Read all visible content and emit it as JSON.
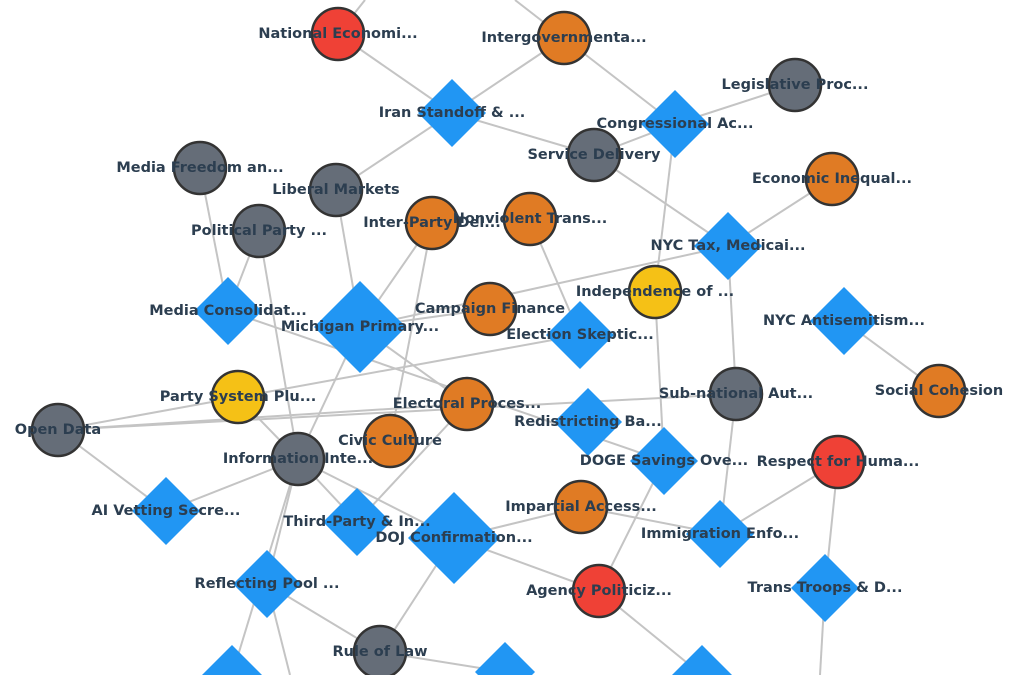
{
  "nodes": [
    {
      "label": "National Economi...",
      "shape": "circle",
      "color": "#ef4136"
    },
    {
      "label": "Intergovernmenta...",
      "shape": "circle",
      "color": "#e07b24"
    },
    {
      "label": "Legislative Proc...",
      "shape": "circle",
      "color": "#656d78"
    },
    {
      "label": "Iran Standoff & ...",
      "shape": "diamond",
      "color": "#2196f3"
    },
    {
      "label": "Congressional Ac...",
      "shape": "diamond",
      "color": "#2196f3"
    },
    {
      "label": "Service Delivery",
      "shape": "circle",
      "color": "#656d78"
    },
    {
      "label": "Media Freedom an...",
      "shape": "circle",
      "color": "#656d78"
    },
    {
      "label": "Economic Inequal...",
      "shape": "circle",
      "color": "#e07b24"
    },
    {
      "label": "Liberal Markets",
      "shape": "circle",
      "color": "#656d78"
    },
    {
      "label": "Inter-Party Del...",
      "shape": "circle",
      "color": "#e07b24"
    },
    {
      "label": "Nonviolent Trans...",
      "shape": "circle",
      "color": "#e07b24"
    },
    {
      "label": "Political Party ...",
      "shape": "circle",
      "color": "#656d78"
    },
    {
      "label": "NYC Tax, Medicai...",
      "shape": "diamond",
      "color": "#2196f3"
    },
    {
      "label": "Independence of ...",
      "shape": "circle",
      "color": "#f5c116"
    },
    {
      "label": "Media Consolidat...",
      "shape": "diamond",
      "color": "#2196f3"
    },
    {
      "label": "Michigan Primary...",
      "shape": "diamond",
      "color": "#2196f3"
    },
    {
      "label": "Campaign Finance",
      "shape": "circle",
      "color": "#e07b24"
    },
    {
      "label": "Election Skeptic...",
      "shape": "diamond",
      "color": "#2196f3"
    },
    {
      "label": "NYC Antisemitism...",
      "shape": "diamond",
      "color": "#2196f3"
    },
    {
      "label": "Party System Plu...",
      "shape": "circle",
      "color": "#f5c116"
    },
    {
      "label": "Social Cohesion",
      "shape": "circle",
      "color": "#e07b24"
    },
    {
      "label": "Electoral Proces...",
      "shape": "circle",
      "color": "#e07b24"
    },
    {
      "label": "Sub-national Aut...",
      "shape": "circle",
      "color": "#656d78"
    },
    {
      "label": "Redistricting Ba...",
      "shape": "diamond",
      "color": "#2196f3"
    },
    {
      "label": "Open Data",
      "shape": "circle",
      "color": "#656d78"
    },
    {
      "label": "Civic Culture",
      "shape": "circle",
      "color": "#e07b24"
    },
    {
      "label": "Information Inte...",
      "shape": "circle",
      "color": "#656d78"
    },
    {
      "label": "DOGE Savings Ove...",
      "shape": "diamond",
      "color": "#2196f3"
    },
    {
      "label": "Respect for Huma...",
      "shape": "circle",
      "color": "#ef4136"
    },
    {
      "label": "AI Vetting Secre...",
      "shape": "diamond",
      "color": "#2196f3"
    },
    {
      "label": "Impartial Access...",
      "shape": "circle",
      "color": "#e07b24"
    },
    {
      "label": "Third-Party & In...",
      "shape": "diamond",
      "color": "#2196f3"
    },
    {
      "label": "DOJ Confirmation...",
      "shape": "diamond",
      "color": "#2196f3"
    },
    {
      "label": "Immigration Enfo...",
      "shape": "diamond",
      "color": "#2196f3"
    },
    {
      "label": "Reflecting Pool ...",
      "shape": "diamond",
      "color": "#2196f3"
    },
    {
      "label": "Agency Politiciz...",
      "shape": "circle",
      "color": "#ef4136"
    },
    {
      "label": "Trans Troops & D...",
      "shape": "diamond",
      "color": "#2196f3"
    },
    {
      "label": "Rule of Law",
      "shape": "circle",
      "color": "#656d78"
    }
  ]
}
